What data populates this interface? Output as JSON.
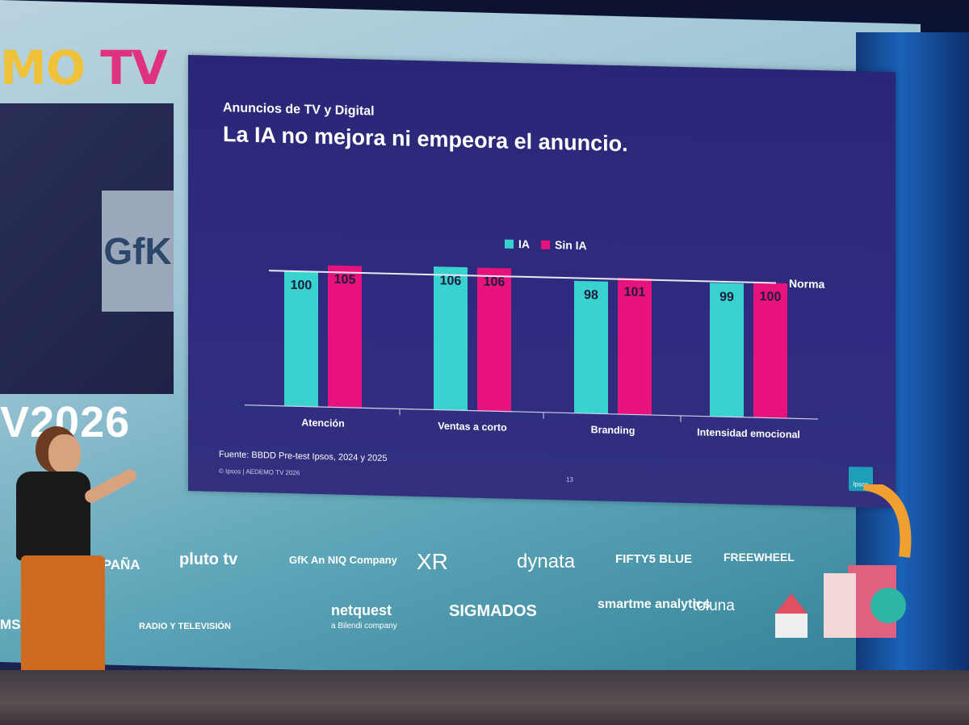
{
  "event": {
    "brand_part1": "MO",
    "brand_part2": "TV",
    "year_label": "V2026",
    "video_logo": "GfK"
  },
  "slide": {
    "kicker": "Anuncios de TV y Digital",
    "title": "La IA no mejora ni empeora el anuncio.",
    "source": "Fuente: BBDD Pre-test Ipsos, 2024 y  2025",
    "copyright": "© Ipsos | AEDEMO TV 2026",
    "page_number": "13",
    "brand_badge": "Ipsos"
  },
  "chart_data": {
    "type": "bar",
    "categories": [
      "Atención",
      "Ventas a corto",
      "Branding",
      "Intensidad emocional"
    ],
    "series": [
      {
        "name": "IA",
        "values": [
          100,
          106,
          98,
          99
        ],
        "color": "#39d3cf"
      },
      {
        "name": "Sin IA",
        "values": [
          105,
          106,
          101,
          100
        ],
        "color": "#e8127c"
      }
    ],
    "reference_line": {
      "label": "Norma",
      "value": 100
    },
    "ylim": [
      0,
      110
    ],
    "title": "La IA no mejora ni empeora el anuncio.",
    "xlabel": "",
    "ylabel": "",
    "legend": "top-center",
    "grid": false
  },
  "sponsors": [
    {
      "name": "ESPAÑA"
    },
    {
      "name": "pluto tv"
    },
    {
      "name": "GfK  An NIQ Company"
    },
    {
      "name": "XR"
    },
    {
      "name": "dynata"
    },
    {
      "name": "FIFTY5 BLUE"
    },
    {
      "name": "FREEWHEEL"
    },
    {
      "name": "MSO"
    },
    {
      "name": "RADIO Y TELEVISIÓN"
    },
    {
      "name": "netquest"
    },
    {
      "name": "a Bilendi company"
    },
    {
      "name": "SIGMADOS"
    },
    {
      "name": "smartme analytics"
    },
    {
      "name": "toluna"
    }
  ],
  "colors": {
    "ia": "#39d3cf",
    "sin_ia": "#e8127c",
    "slide_bg": "#2d2a7c",
    "accent_yellow": "#f0c23a",
    "accent_pink": "#e0327f"
  }
}
